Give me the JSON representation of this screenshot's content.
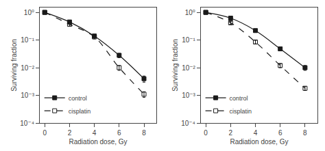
{
  "chart_data": [
    {
      "type": "line",
      "xlabel": "Radiation dose, Gy",
      "ylabel": "Surviving fraction",
      "log": "y",
      "grid": false,
      "legend": "lower left",
      "xlim": [
        -0.4,
        9.0
      ],
      "ylim": [
        0.0001,
        1.5
      ],
      "xticks": [
        0,
        2,
        4,
        6,
        8
      ],
      "yticks": [
        {
          "value": 0.0001,
          "label": "10⁻⁴"
        },
        {
          "value": 0.001,
          "label": "10⁻³"
        },
        {
          "value": 0.01,
          "label": "10⁻²"
        },
        {
          "value": 0.1,
          "label": "10⁻¹"
        },
        {
          "value": 1,
          "label": "10⁰"
        }
      ],
      "x": [
        0,
        2,
        4,
        6,
        8
      ],
      "series": [
        {
          "name": "control",
          "color": "#1a1a1a",
          "marker": "square",
          "line_style": "solid",
          "values": [
            1.0,
            0.45,
            0.14,
            0.028,
            0.004
          ],
          "error_minus": [
            0.0,
            0.07,
            0.02,
            0.005,
            0.001
          ],
          "error_plus": [
            0.0,
            0.07,
            0.02,
            0.005,
            0.001
          ]
        },
        {
          "name": "cisplatin",
          "color": "#1a1a1a",
          "marker": "square-open",
          "line_style": "dash",
          "values": [
            1.0,
            0.37,
            0.13,
            0.01,
            0.0011
          ],
          "error_minus": [
            0.0,
            0.05,
            0.02,
            0.002,
            0.00025
          ],
          "error_plus": [
            0.0,
            0.05,
            0.02,
            0.002,
            0.00025
          ]
        }
      ]
    },
    {
      "type": "line",
      "xlabel": "Radiation dose, Gy",
      "ylabel": "Surviving fraction",
      "log": "y",
      "grid": false,
      "legend": "lower left",
      "xlim": [
        -0.4,
        9.0
      ],
      "ylim": [
        0.0001,
        1.5
      ],
      "xticks": [
        0,
        2,
        4,
        6,
        8
      ],
      "yticks": [
        {
          "value": 0.0001,
          "label": "10⁻⁴"
        },
        {
          "value": 0.001,
          "label": "10⁻³"
        },
        {
          "value": 0.01,
          "label": "10⁻²"
        },
        {
          "value": 0.1,
          "label": "10⁻¹"
        },
        {
          "value": 1,
          "label": "10⁰"
        }
      ],
      "x": [
        0,
        2,
        4,
        6,
        8
      ],
      "series": [
        {
          "name": "control",
          "color": "#1a1a1a",
          "marker": "square",
          "line_style": "solid",
          "values": [
            1.0,
            0.62,
            0.22,
            0.048,
            0.01
          ],
          "error_minus": [
            0.0,
            0.05,
            0.025,
            0.006,
            0.002
          ],
          "error_plus": [
            0.0,
            0.05,
            0.025,
            0.006,
            0.002
          ]
        },
        {
          "name": "cisplatin",
          "color": "#1a1a1a",
          "marker": "square-open",
          "line_style": "dash",
          "values": [
            1.0,
            0.42,
            0.085,
            0.012,
            0.0018
          ],
          "error_minus": [
            0.0,
            0.05,
            0.012,
            0.002,
            0.0003
          ],
          "error_plus": [
            0.0,
            0.05,
            0.012,
            0.002,
            0.0003
          ]
        }
      ]
    }
  ]
}
